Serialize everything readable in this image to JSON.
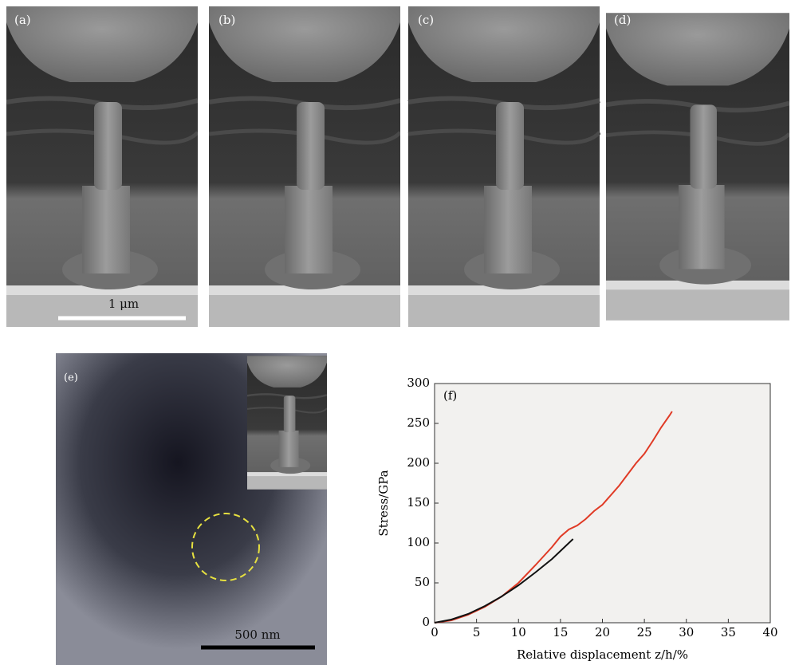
{
  "panels": [
    {
      "label": "(a)"
    },
    {
      "label": "(b)"
    },
    {
      "label": "(c)"
    },
    {
      "label": "(d)"
    },
    {
      "label": "(e)"
    }
  ],
  "scale_bars": [
    {
      "label": "1 μm"
    },
    {
      "label": "500 nm"
    }
  ],
  "chart_data": {
    "type": "line",
    "annotation": "(f)",
    "xlabel": "Relative displacement z/h/%",
    "ylabel": "Stress/GPa",
    "xlim": [
      0,
      40
    ],
    "ylim": [
      0,
      300
    ],
    "xticks": [
      0,
      5,
      10,
      15,
      20,
      25,
      30,
      35,
      40
    ],
    "yticks": [
      0,
      50,
      100,
      150,
      200,
      250,
      300
    ],
    "series": [
      {
        "color": "#e03a25",
        "x": [
          0,
          2,
          4,
          6,
          8,
          10,
          12,
          14,
          15,
          16,
          17,
          18,
          19,
          20,
          22,
          24,
          25,
          26,
          27,
          28,
          28.3
        ],
        "values": [
          0,
          3,
          10,
          20,
          33,
          50,
          72,
          95,
          108,
          117,
          122,
          130,
          140,
          148,
          172,
          200,
          212,
          228,
          245,
          260,
          265
        ]
      },
      {
        "color": "#111111",
        "x": [
          0,
          2,
          4,
          6,
          8,
          10,
          12,
          14,
          15,
          16,
          16.5
        ],
        "values": [
          0,
          4,
          11,
          21,
          33,
          47,
          63,
          80,
          90,
          100,
          105
        ]
      }
    ]
  }
}
